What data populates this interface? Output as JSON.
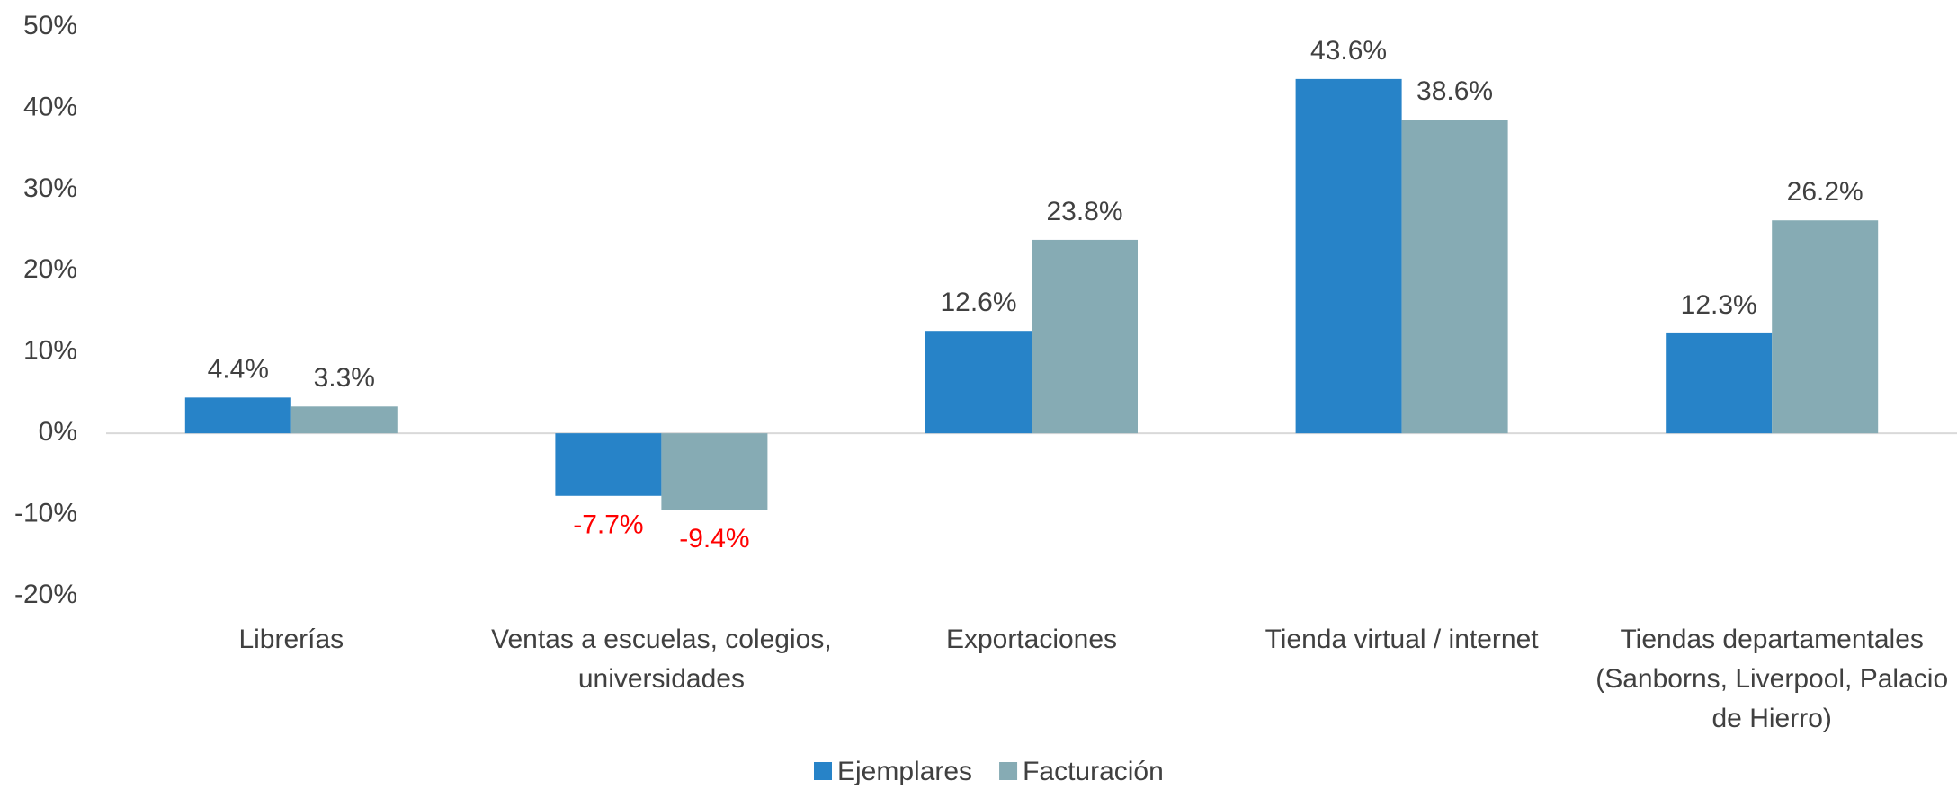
{
  "chart_data": {
    "type": "bar",
    "categories": [
      "Librerías",
      "Ventas a escuelas, colegios, universidades",
      "Exportaciones",
      "Tienda virtual / internet",
      "Tiendas departamentales (Sanborns, Liverpool, Palacio de Hierro)"
    ],
    "series": [
      {
        "name": "Ejemplares",
        "color": "#2783c8",
        "values": [
          4.4,
          -7.7,
          12.6,
          43.6,
          12.3
        ],
        "value_labels": [
          "4.4%",
          "-7.7%",
          "12.6%",
          "43.6%",
          "12.3%"
        ]
      },
      {
        "name": "Facturación",
        "color": "#86abb4",
        "values": [
          3.3,
          -9.4,
          23.8,
          38.6,
          26.2
        ],
        "value_labels": [
          "3.3%",
          "-9.4%",
          "23.8%",
          "38.6%",
          "26.2%"
        ]
      }
    ],
    "ylim": [
      -20,
      50
    ],
    "yticks": [
      {
        "value": -20,
        "label": "-20%"
      },
      {
        "value": -10,
        "label": "-10%"
      },
      {
        "value": 0,
        "label": "0%"
      },
      {
        "value": 10,
        "label": "10%"
      },
      {
        "value": 20,
        "label": "20%"
      },
      {
        "value": 30,
        "label": "30%"
      },
      {
        "value": 40,
        "label": "40%"
      },
      {
        "value": 50,
        "label": "50%"
      }
    ],
    "grid": false,
    "legend": "bottom",
    "negative_label_color": "#ff0000"
  }
}
